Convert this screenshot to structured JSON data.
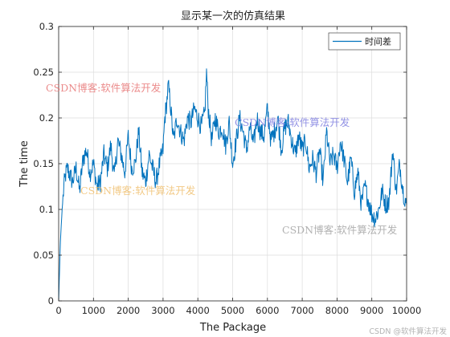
{
  "chart_data": {
    "type": "line",
    "title": "显示某一次的仿真结果",
    "xlabel": "The Package",
    "ylabel": "The time",
    "xlim": [
      0,
      10000
    ],
    "ylim": [
      0,
      0.3
    ],
    "xticks": [
      0,
      1000,
      2000,
      3000,
      4000,
      5000,
      6000,
      7000,
      8000,
      9000,
      10000
    ],
    "yticks": [
      0,
      0.05,
      0.1,
      0.15,
      0.2,
      0.25,
      0.3
    ],
    "xtick_labels": [
      "0",
      "1000",
      "2000",
      "3000",
      "4000",
      "5000",
      "6000",
      "7000",
      "8000",
      "9000",
      "10000"
    ],
    "ytick_labels": [
      "0",
      "0.05",
      "0.1",
      "0.15",
      "0.2",
      "0.25",
      "0.3"
    ],
    "grid": true,
    "legend_position": "top-right",
    "series": [
      {
        "name": "时间差",
        "color": "#0072BD",
        "x": [
          0,
          50,
          100,
          150,
          200,
          250,
          300,
          400,
          500,
          600,
          700,
          800,
          900,
          1000,
          1100,
          1200,
          1300,
          1400,
          1500,
          1600,
          1700,
          1800,
          1900,
          2000,
          2100,
          2200,
          2300,
          2400,
          2500,
          2600,
          2700,
          2800,
          2900,
          3000,
          3050,
          3100,
          3150,
          3200,
          3300,
          3400,
          3500,
          3600,
          3700,
          3800,
          3900,
          4000,
          4100,
          4200,
          4250,
          4300,
          4400,
          4500,
          4600,
          4700,
          4800,
          4900,
          5000,
          5100,
          5200,
          5300,
          5400,
          5500,
          5600,
          5700,
          5800,
          5900,
          6000,
          6100,
          6200,
          6300,
          6400,
          6500,
          6600,
          6700,
          6800,
          6900,
          7000,
          7100,
          7200,
          7300,
          7400,
          7500,
          7600,
          7700,
          7800,
          7900,
          8000,
          8100,
          8200,
          8300,
          8400,
          8500,
          8600,
          8700,
          8800,
          8900,
          9000,
          9100,
          9200,
          9300,
          9400,
          9500,
          9600,
          9700,
          9800,
          9900,
          10000
        ],
        "y": [
          0.0,
          0.065,
          0.1,
          0.125,
          0.138,
          0.145,
          0.14,
          0.13,
          0.145,
          0.12,
          0.155,
          0.165,
          0.14,
          0.15,
          0.125,
          0.13,
          0.16,
          0.145,
          0.17,
          0.135,
          0.175,
          0.16,
          0.14,
          0.18,
          0.145,
          0.15,
          0.185,
          0.14,
          0.13,
          0.16,
          0.145,
          0.13,
          0.15,
          0.165,
          0.2,
          0.215,
          0.235,
          0.22,
          0.175,
          0.2,
          0.185,
          0.175,
          0.2,
          0.195,
          0.21,
          0.2,
          0.19,
          0.205,
          0.25,
          0.21,
          0.175,
          0.2,
          0.185,
          0.19,
          0.17,
          0.195,
          0.15,
          0.175,
          0.2,
          0.185,
          0.165,
          0.19,
          0.17,
          0.2,
          0.185,
          0.18,
          0.21,
          0.175,
          0.185,
          0.2,
          0.165,
          0.19,
          0.195,
          0.175,
          0.16,
          0.18,
          0.165,
          0.175,
          0.145,
          0.155,
          0.14,
          0.165,
          0.13,
          0.185,
          0.15,
          0.16,
          0.145,
          0.175,
          0.155,
          0.13,
          0.155,
          0.12,
          0.14,
          0.105,
          0.125,
          0.11,
          0.095,
          0.09,
          0.1,
          0.12,
          0.105,
          0.11,
          0.165,
          0.12,
          0.15,
          0.12,
          0.105
        ]
      }
    ]
  },
  "watermarks": {
    "left": "CSDN博客:软件算法开发",
    "center": "CSDN博客:软件算法开发",
    "right_upper": "CSDN博客:软件算法开发",
    "right_lower": "CSDN博客:软件算法开发",
    "corner": "CSDN @软件算法开发"
  }
}
